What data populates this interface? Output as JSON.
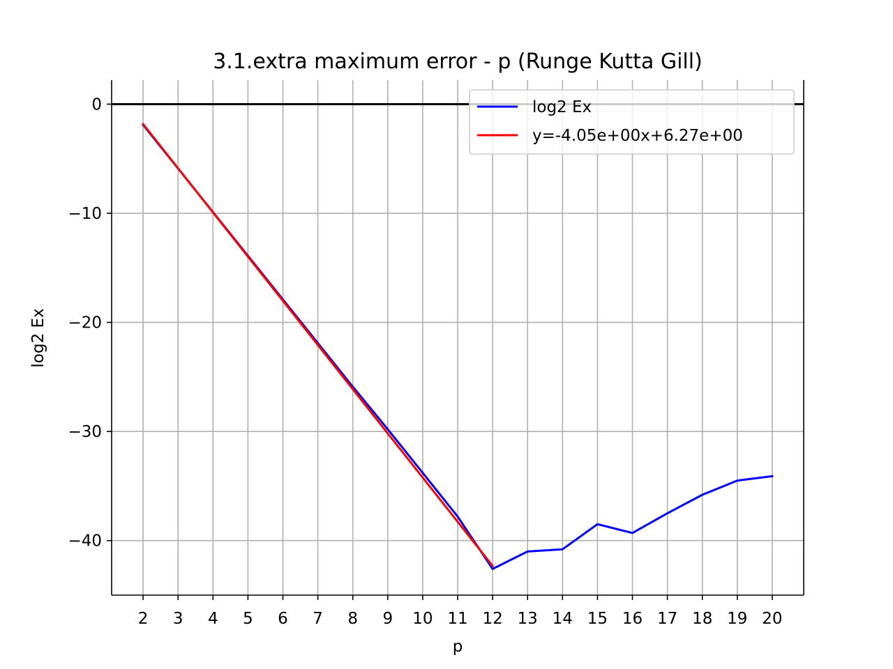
{
  "chart_data": {
    "type": "line",
    "title": "3.1.extra maximum error - p (Runge Kutta Gill)",
    "xlabel": "p",
    "ylabel": "log2 Ex",
    "xlim": [
      1.1,
      20.9
    ],
    "ylim": [
      -45.0,
      2.2
    ],
    "xticks": [
      2,
      3,
      4,
      5,
      6,
      7,
      8,
      9,
      10,
      11,
      12,
      13,
      14,
      15,
      16,
      17,
      18,
      19,
      20
    ],
    "yticks": [
      0,
      -10,
      -20,
      -30,
      -40
    ],
    "ytick_labels": [
      "0",
      "−10",
      "−20",
      "−30",
      "−40"
    ],
    "grid": true,
    "reference_line": {
      "y": 0,
      "color": "#000000"
    },
    "legend_position": "top-right",
    "series": [
      {
        "name": "log2 Ex",
        "color": "#0000ff",
        "x": [
          2,
          3,
          4,
          5,
          6,
          7,
          8,
          9,
          10,
          11,
          12,
          13,
          14,
          15,
          16,
          17,
          18,
          19,
          20
        ],
        "y": [
          -1.9,
          -5.9,
          -9.9,
          -13.9,
          -17.9,
          -21.9,
          -25.9,
          -29.8,
          -33.8,
          -37.8,
          -42.6,
          -41.0,
          -40.8,
          -38.5,
          -39.3,
          -37.5,
          -35.8,
          -34.5,
          -34.1
        ]
      },
      {
        "name": "y=-4.05e+00x+6.27e+00",
        "color": "#ff0000",
        "x": [
          2,
          12
        ],
        "y": [
          -1.83,
          -42.33
        ]
      }
    ]
  }
}
